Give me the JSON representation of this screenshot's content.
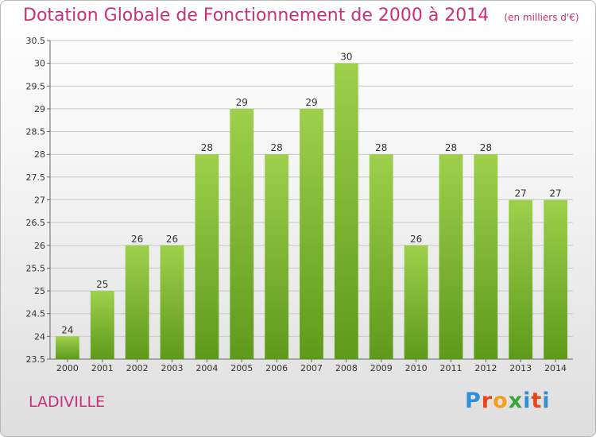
{
  "header": {
    "title": "Dotation Globale de Fonctionnement de 2000 à 2014",
    "unit": "(en milliers d'€)"
  },
  "footer": {
    "commune": "LADIVILLE",
    "logo_text": "Proxiti",
    "logo_colors": [
      "#2f8fd8",
      "#e8471c",
      "#f2a01c",
      "#3aa53a",
      "#2f8fd8",
      "#e8471c",
      "#2f8fd8"
    ]
  },
  "chart_data": {
    "type": "bar",
    "categories": [
      "2000",
      "2001",
      "2002",
      "2003",
      "2004",
      "2005",
      "2006",
      "2007",
      "2008",
      "2009",
      "2010",
      "2011",
      "2012",
      "2013",
      "2014"
    ],
    "values": [
      24,
      25,
      26,
      26,
      28,
      29,
      28,
      29,
      30,
      28,
      26,
      28,
      28,
      27,
      27
    ],
    "yticks": [
      "23.5",
      "24",
      "24.5",
      "25",
      "25.5",
      "26",
      "26.5",
      "27",
      "27.5",
      "28",
      "28.5",
      "29",
      "29.5",
      "30",
      "30.5"
    ],
    "ylim": [
      23.5,
      30.5
    ],
    "title": "Dotation Globale de Fonctionnement de 2000 à 2014",
    "xlabel": "",
    "ylabel": "",
    "grid": true,
    "bar_color_top": "#9ed04c",
    "bar_color_bottom": "#5e9a1a",
    "grid_color": "#c8c8c8"
  }
}
